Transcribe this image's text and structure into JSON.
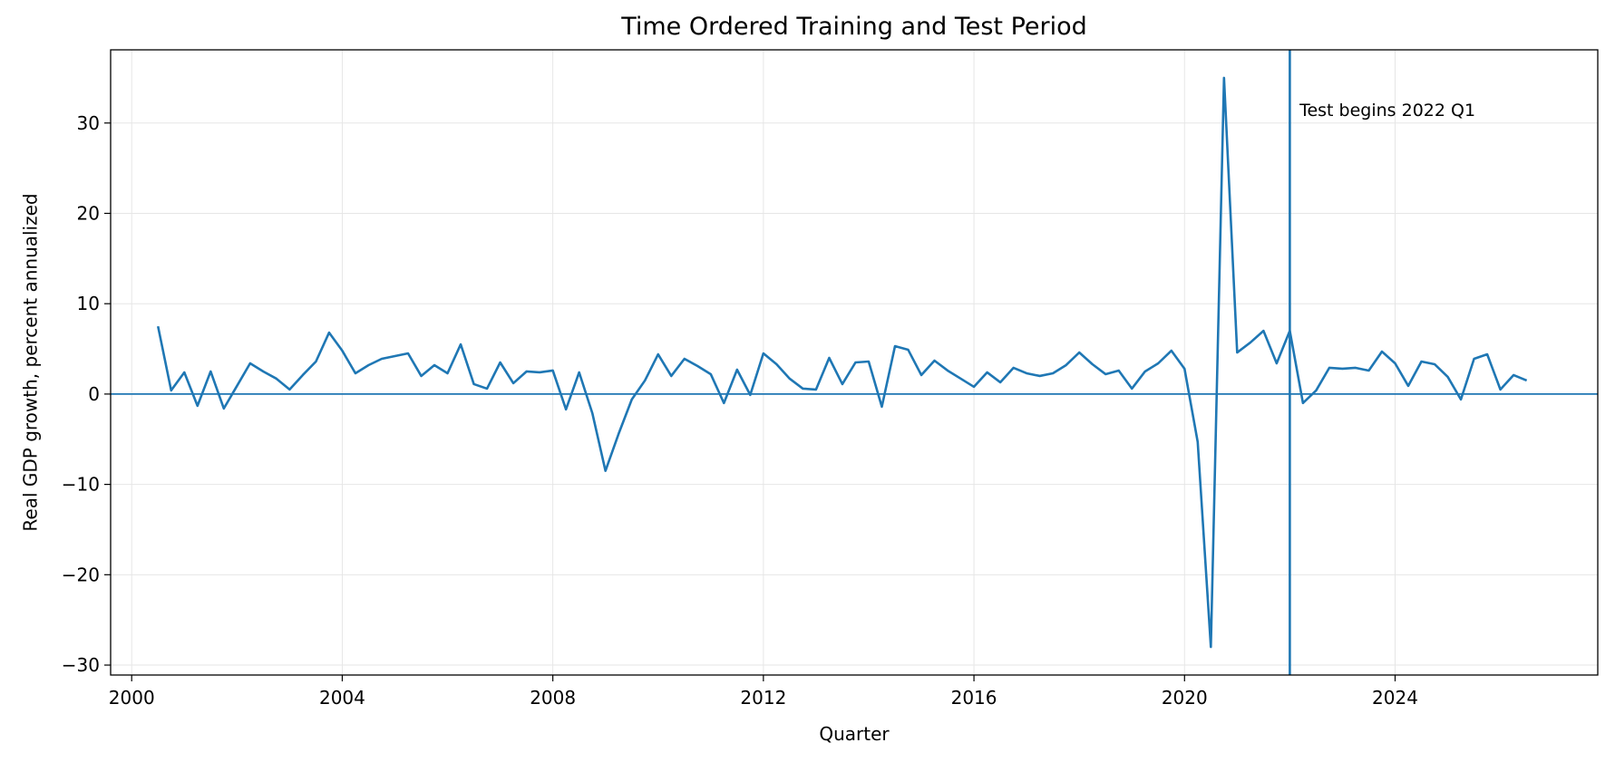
{
  "chart_data": {
    "type": "line",
    "title": "Time Ordered Training and Test Period",
    "xlabel": "Quarter",
    "ylabel": "Real GDP growth, percent annualized",
    "xlim": [
      1999.6,
      2027.85
    ],
    "ylim": [
      -31.1,
      38.1
    ],
    "xticks": [
      2000,
      2004,
      2008,
      2012,
      2016,
      2020,
      2024
    ],
    "yticks": [
      -30,
      -20,
      -10,
      0,
      10,
      20,
      30
    ],
    "grid": true,
    "legend": "none",
    "colors": {
      "line": "#1f77b4",
      "grid": "#e6e6e6"
    },
    "reference_lines": {
      "horizontal_y": 0,
      "vertical_x": 2022.0
    },
    "annotations": [
      {
        "text": "Test begins 2022 Q1",
        "x": 2022.15,
        "y": 31.5
      }
    ],
    "series": [
      {
        "x": [
          2000.5,
          2000.75,
          2001.0,
          2001.25,
          2001.5,
          2001.75,
          2002.0,
          2002.25,
          2002.5,
          2002.75,
          2003.0,
          2003.25,
          2003.5,
          2003.75,
          2004.0,
          2004.25,
          2004.5,
          2004.75,
          2005.0,
          2005.25,
          2005.5,
          2005.75,
          2006.0,
          2006.25,
          2006.5,
          2006.75,
          2007.0,
          2007.25,
          2007.5,
          2007.75,
          2008.0,
          2008.25,
          2008.5,
          2008.75,
          2009.0,
          2009.25,
          2009.5,
          2009.75,
          2010.0,
          2010.25,
          2010.5,
          2010.75,
          2011.0,
          2011.25,
          2011.5,
          2011.75,
          2012.0,
          2012.25,
          2012.5,
          2012.75,
          2013.0,
          2013.25,
          2013.5,
          2013.75,
          2014.0,
          2014.25,
          2014.5,
          2014.75,
          2015.0,
          2015.25,
          2015.5,
          2015.75,
          2016.0,
          2016.25,
          2016.5,
          2016.75,
          2017.0,
          2017.25,
          2017.5,
          2017.75,
          2018.0,
          2018.25,
          2018.5,
          2018.75,
          2019.0,
          2019.25,
          2019.5,
          2019.75,
          2020.0,
          2020.25,
          2020.5,
          2020.75,
          2021.0,
          2021.25,
          2021.5,
          2021.75,
          2022.0,
          2022.25,
          2022.5,
          2022.75,
          2023.0,
          2023.25,
          2023.5,
          2023.75,
          2024.0,
          2024.25,
          2024.5,
          2024.75,
          2025.0,
          2025.25,
          2025.5,
          2025.75,
          2026.0,
          2026.25,
          2026.5
        ],
        "values": [
          7.5,
          0.4,
          2.4,
          -1.3,
          2.5,
          -1.6,
          0.9,
          3.4,
          2.5,
          1.7,
          0.5,
          2.1,
          3.6,
          6.8,
          4.8,
          2.3,
          3.2,
          3.9,
          4.2,
          4.5,
          2.0,
          3.2,
          2.3,
          5.5,
          1.1,
          0.6,
          3.5,
          1.2,
          2.5,
          2.4,
          2.6,
          -1.7,
          2.4,
          -2.1,
          -8.5,
          -4.4,
          -0.6,
          1.5,
          4.4,
          2.0,
          3.9,
          3.1,
          2.2,
          -1.0,
          2.7,
          -0.1,
          4.5,
          3.3,
          1.7,
          0.6,
          0.5,
          4.0,
          1.1,
          3.5,
          3.6,
          -1.4,
          5.3,
          4.9,
          2.1,
          3.7,
          2.6,
          1.7,
          0.8,
          2.4,
          1.3,
          2.9,
          2.3,
          2.0,
          2.3,
          3.2,
          4.6,
          3.3,
          2.2,
          2.6,
          0.6,
          2.5,
          3.4,
          4.8,
          2.8,
          -5.3,
          -28.0,
          35.0,
          4.6,
          5.7,
          7.0,
          3.4,
          7.0,
          -1.0,
          0.4,
          2.9,
          2.8,
          2.9,
          2.6,
          4.7,
          3.4,
          0.9,
          3.6,
          3.3,
          1.9,
          -0.6,
          3.9,
          4.4,
          0.5,
          2.1,
          1.5
        ]
      }
    ]
  }
}
